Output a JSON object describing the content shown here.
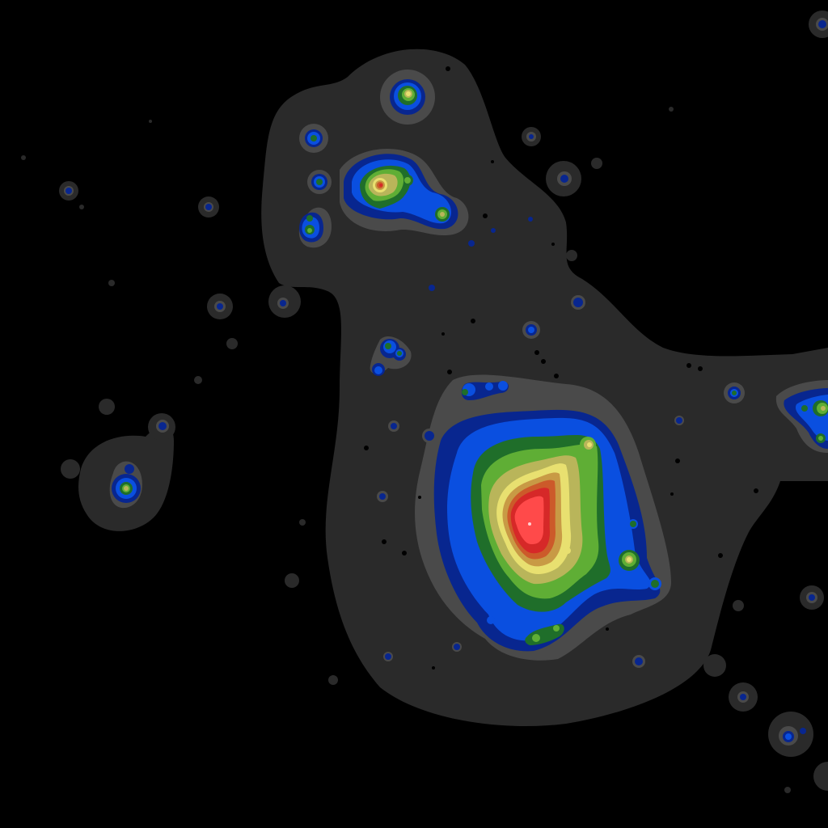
{
  "image": {
    "description_kind": "false-color isophote contour map",
    "palette": {
      "background": "#000000",
      "level_1": "#2a2a2a",
      "level_2": "#4a4a4a",
      "level_3": "#08268f",
      "level_4": "#0a4fe0",
      "level_5": "#1f6e2a",
      "level_6": "#5fae35",
      "level_7": "#b9b55a",
      "level_8": "#e8e070",
      "level_9": "#d9a040",
      "level_10": "#cc5a2a",
      "level_11": "#d62828",
      "level_12": "#ff4a4a",
      "peak": "#ffd0d0"
    }
  }
}
